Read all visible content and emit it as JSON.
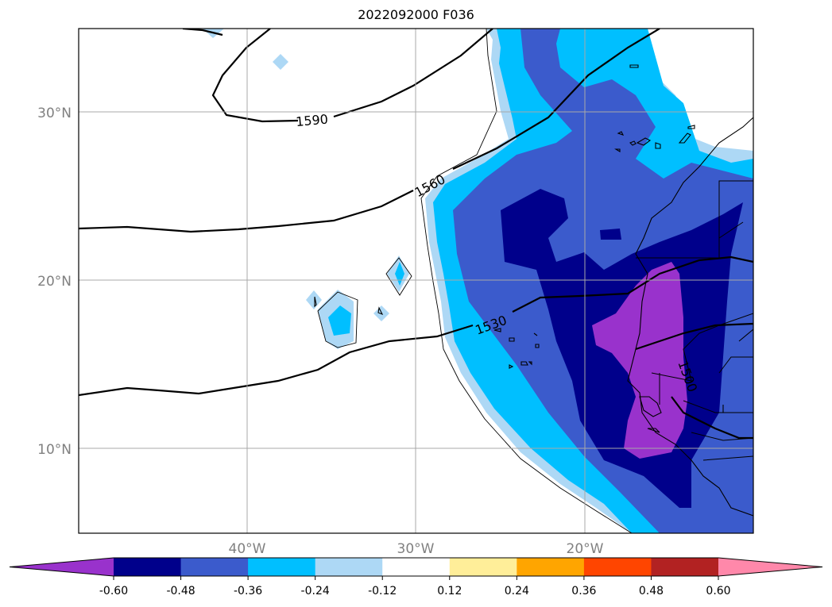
{
  "title": "2022092000 F036",
  "map": {
    "lon_range": [
      -50,
      -10
    ],
    "lat_range": [
      5,
      35
    ],
    "gridlines": true,
    "lat_ticks": [
      "30°N",
      "20°N",
      "10°N"
    ],
    "lon_ticks": [
      "40°W",
      "30°W",
      "20°W"
    ],
    "contour_labels": [
      "1590",
      "1560",
      "1530",
      "1500"
    ]
  },
  "colorbar": {
    "orientation": "horizontal",
    "extend": "both",
    "levels": [
      "-0.60",
      "-0.48",
      "-0.36",
      "-0.24",
      "-0.12",
      "0.12",
      "0.24",
      "0.36",
      "0.48",
      "0.60"
    ],
    "colors": [
      "#9932cc",
      "#00008b",
      "#3b5bcc",
      "#00bfff",
      "#add8f5",
      "#ffffff",
      "#ffee99",
      "#ffa500",
      "#ff4500",
      "#b22222",
      "#ff88aa"
    ]
  }
}
